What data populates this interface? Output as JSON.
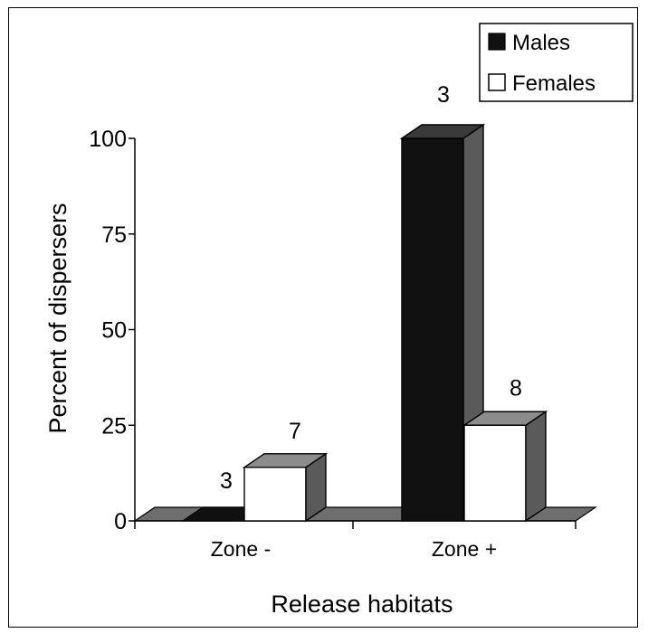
{
  "chart_data": {
    "type": "bar",
    "title": "",
    "xlabel": "Release habitats",
    "ylabel": "Percent of dispersers",
    "ylim": [
      0,
      100
    ],
    "yticks": [
      0,
      25,
      50,
      75,
      100
    ],
    "categories": [
      "Zone -",
      "Zone +"
    ],
    "legend_position": "top-right",
    "series": [
      {
        "name": "Males",
        "color": "#111111",
        "values": [
          0,
          100
        ],
        "labels": [
          "3",
          "3"
        ]
      },
      {
        "name": "Females",
        "color": "#ffffff",
        "values": [
          14,
          25
        ],
        "labels": [
          "7",
          "8"
        ]
      }
    ]
  }
}
